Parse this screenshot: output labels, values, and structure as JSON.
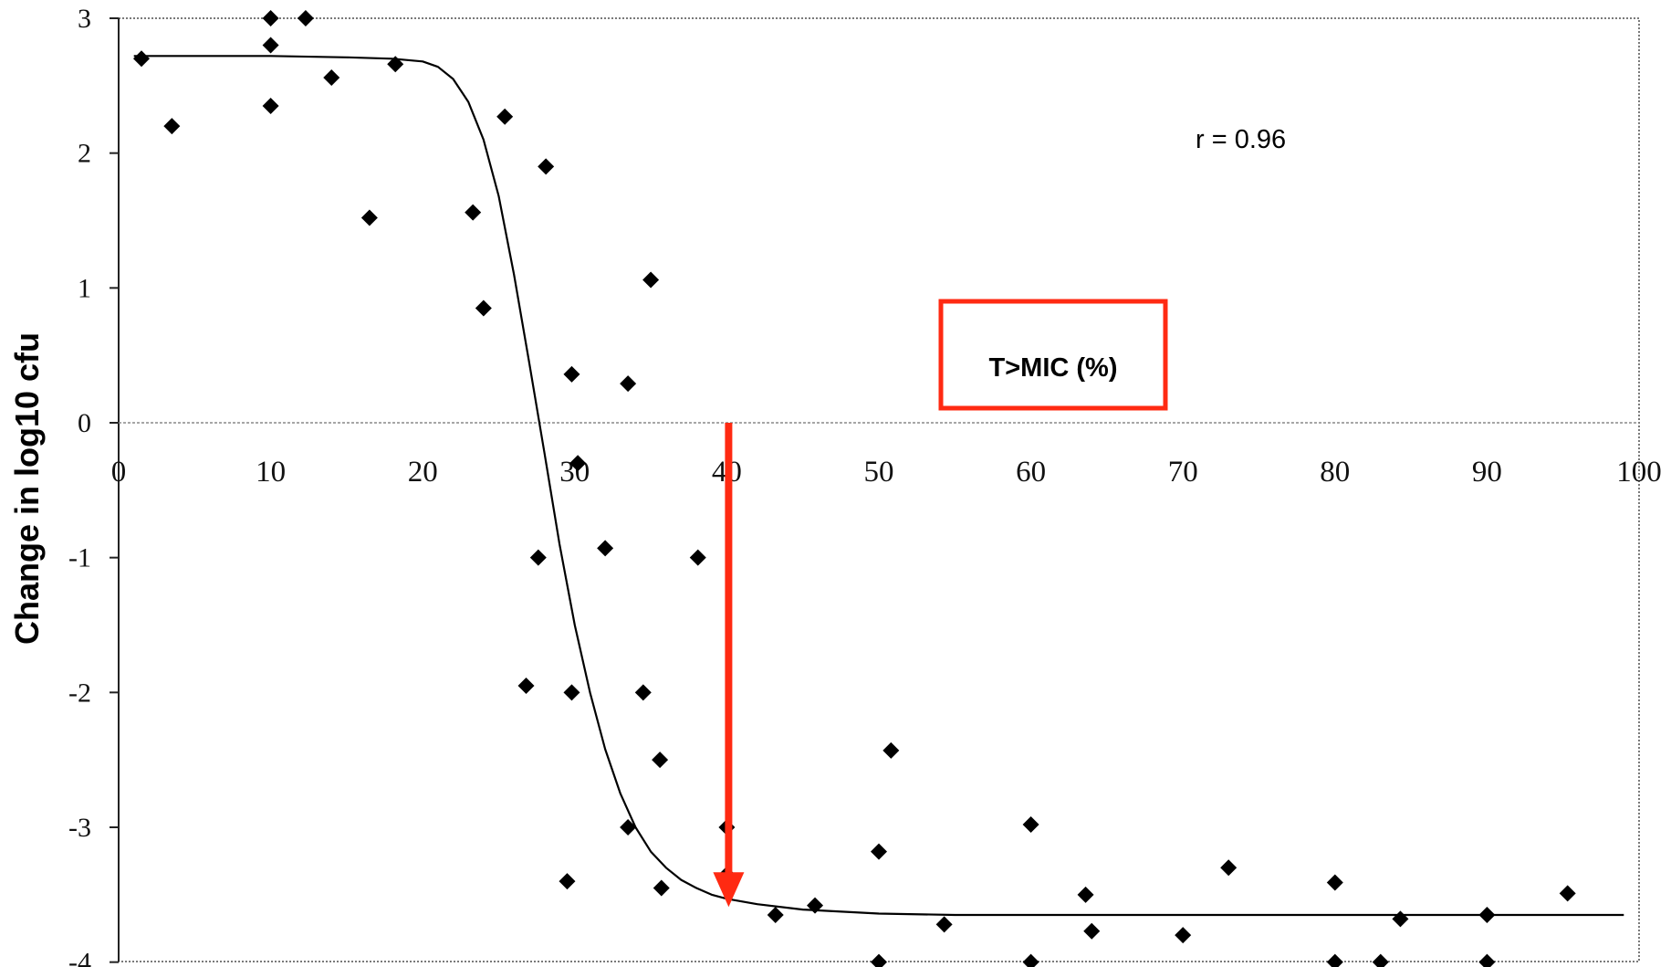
{
  "chart_data": {
    "type": "scatter",
    "title": "",
    "xlabel": "T>MIC (%)",
    "ylabel": "Change in log10 cfu",
    "xlim": [
      0,
      100
    ],
    "ylim": [
      -4,
      3
    ],
    "x_ticks": [
      "0",
      "10",
      "20",
      "30",
      "40",
      "50",
      "60",
      "70",
      "80",
      "90",
      "100"
    ],
    "y_ticks": [
      "3",
      "2",
      "1",
      "0",
      "-1",
      "-2",
      "-3",
      "-4"
    ],
    "annotation": "r = 0.96",
    "grid": false,
    "marker": "diamond",
    "colors": {
      "points": "#000000",
      "curve": "#000000",
      "highlight": "#ff2a12",
      "zero_line": "#888888"
    },
    "highlight_arrow": {
      "x": 40,
      "y_from": 0,
      "y_to": -3.55
    },
    "points": [
      {
        "x": 1.5,
        "y": 2.7
      },
      {
        "x": 3.5,
        "y": 2.2
      },
      {
        "x": 10,
        "y": 3.0
      },
      {
        "x": 10,
        "y": 2.8
      },
      {
        "x": 10,
        "y": 2.35
      },
      {
        "x": 12.3,
        "y": 3.0
      },
      {
        "x": 14,
        "y": 2.56
      },
      {
        "x": 16.5,
        "y": 1.52
      },
      {
        "x": 18.2,
        "y": 2.66
      },
      {
        "x": 23.3,
        "y": 1.56
      },
      {
        "x": 24,
        "y": 0.85
      },
      {
        "x": 25.4,
        "y": 2.27
      },
      {
        "x": 26.8,
        "y": -1.95
      },
      {
        "x": 27.6,
        "y": -1.0
      },
      {
        "x": 28.1,
        "y": 1.9
      },
      {
        "x": 29.5,
        "y": -3.4
      },
      {
        "x": 29.8,
        "y": 0.36
      },
      {
        "x": 29.8,
        "y": -2.0
      },
      {
        "x": 30.2,
        "y": -0.3
      },
      {
        "x": 32,
        "y": -0.93
      },
      {
        "x": 33.5,
        "y": 0.29
      },
      {
        "x": 33.5,
        "y": -3.0
      },
      {
        "x": 34.5,
        "y": -2.0
      },
      {
        "x": 35,
        "y": 1.06
      },
      {
        "x": 35.6,
        "y": -2.5
      },
      {
        "x": 35.7,
        "y": -3.45
      },
      {
        "x": 38.1,
        "y": -1.0
      },
      {
        "x": 40,
        "y": -3.0
      },
      {
        "x": 40,
        "y": -3.35
      },
      {
        "x": 43.2,
        "y": -3.65
      },
      {
        "x": 45.8,
        "y": -3.58
      },
      {
        "x": 50,
        "y": -3.18
      },
      {
        "x": 50,
        "y": -4.0
      },
      {
        "x": 50.8,
        "y": -2.43
      },
      {
        "x": 54.3,
        "y": -3.72
      },
      {
        "x": 60,
        "y": -2.98
      },
      {
        "x": 60,
        "y": -4.0
      },
      {
        "x": 63.6,
        "y": -3.5
      },
      {
        "x": 64,
        "y": -3.77
      },
      {
        "x": 70,
        "y": -3.8
      },
      {
        "x": 73,
        "y": -3.3
      },
      {
        "x": 80,
        "y": -3.41
      },
      {
        "x": 80,
        "y": -4.0
      },
      {
        "x": 83,
        "y": -4.0
      },
      {
        "x": 84.3,
        "y": -3.68
      },
      {
        "x": 90,
        "y": -3.65
      },
      {
        "x": 90,
        "y": -4.0
      },
      {
        "x": 95.3,
        "y": -3.49
      }
    ],
    "fit_curve": {
      "x": [
        1,
        5,
        10,
        15,
        18,
        20,
        21,
        22,
        23,
        24,
        25,
        26,
        27,
        28,
        29,
        30,
        31,
        32,
        33,
        34,
        35,
        36,
        37,
        38,
        39,
        40,
        42,
        45,
        50,
        55,
        60,
        70,
        80,
        90,
        99
      ],
      "y": [
        2.72,
        2.72,
        2.72,
        2.71,
        2.7,
        2.68,
        2.64,
        2.55,
        2.38,
        2.1,
        1.68,
        1.1,
        0.45,
        -0.22,
        -0.9,
        -1.5,
        -2.0,
        -2.42,
        -2.75,
        -3.0,
        -3.18,
        -3.3,
        -3.39,
        -3.45,
        -3.5,
        -3.53,
        -3.57,
        -3.61,
        -3.64,
        -3.65,
        -3.65,
        -3.65,
        -3.65,
        -3.65,
        -3.65
      ]
    }
  }
}
